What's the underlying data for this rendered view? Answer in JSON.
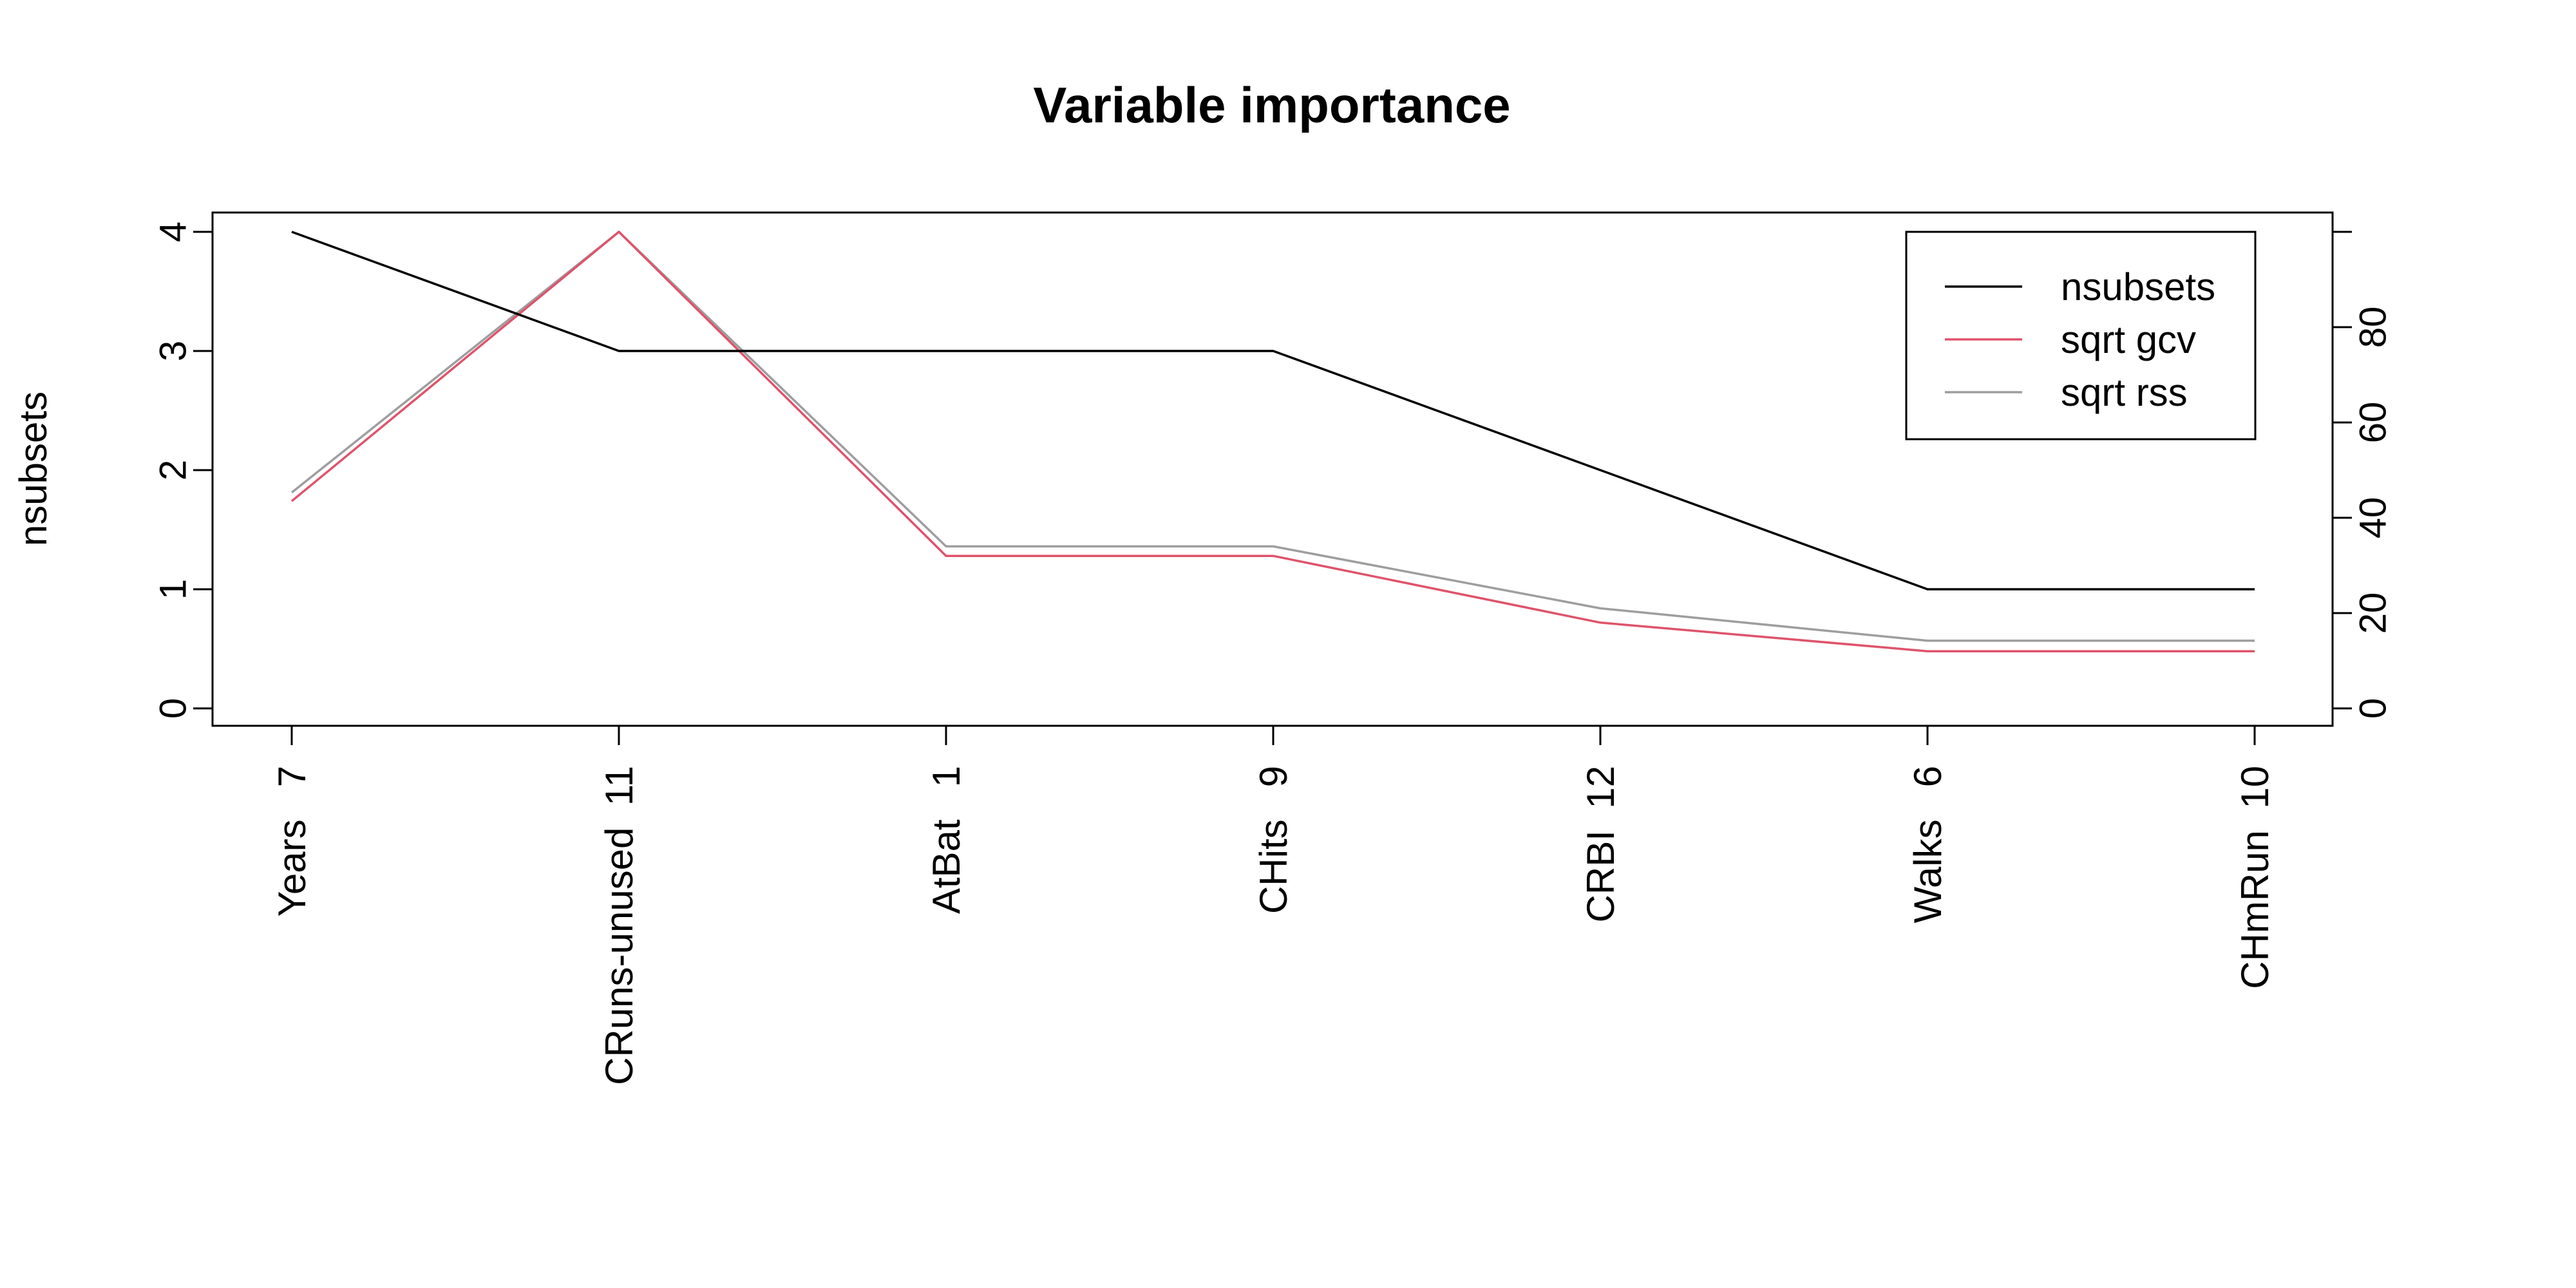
{
  "chart_data": {
    "type": "line",
    "title": "Variable importance",
    "categories": [
      "Years   7",
      "CRuns-unused  11",
      "AtBat   1",
      "CHits   9",
      "CRBI  12",
      "Walks   6",
      "CHmRun  10"
    ],
    "left_axis": {
      "label": "nsubsets",
      "range": [
        0,
        4
      ],
      "ticks": [
        "0",
        "1",
        "2",
        "3",
        "4"
      ]
    },
    "right_axis": {
      "label": "",
      "range": [
        0,
        100
      ],
      "ticks": [
        "0",
        "20",
        "40",
        "60",
        "80"
      ]
    },
    "series": [
      {
        "name": "nsubsets",
        "axis": "left",
        "color": "#000000",
        "values": [
          4,
          3,
          3,
          3,
          2,
          1,
          1
        ]
      },
      {
        "name": "sqrt gcv",
        "axis": "right",
        "color": "#DF536B",
        "values": [
          43.5,
          100,
          32,
          32,
          18,
          12,
          12
        ]
      },
      {
        "name": "sqrt rss",
        "axis": "right",
        "color": "#9E9E9E",
        "values": [
          45.3,
          100,
          34,
          34,
          21,
          14.2,
          14.2
        ]
      }
    ],
    "legend": {
      "position": "top-right",
      "entries": [
        "nsubsets",
        "sqrt gcv",
        "sqrt rss"
      ]
    },
    "grid": false
  }
}
